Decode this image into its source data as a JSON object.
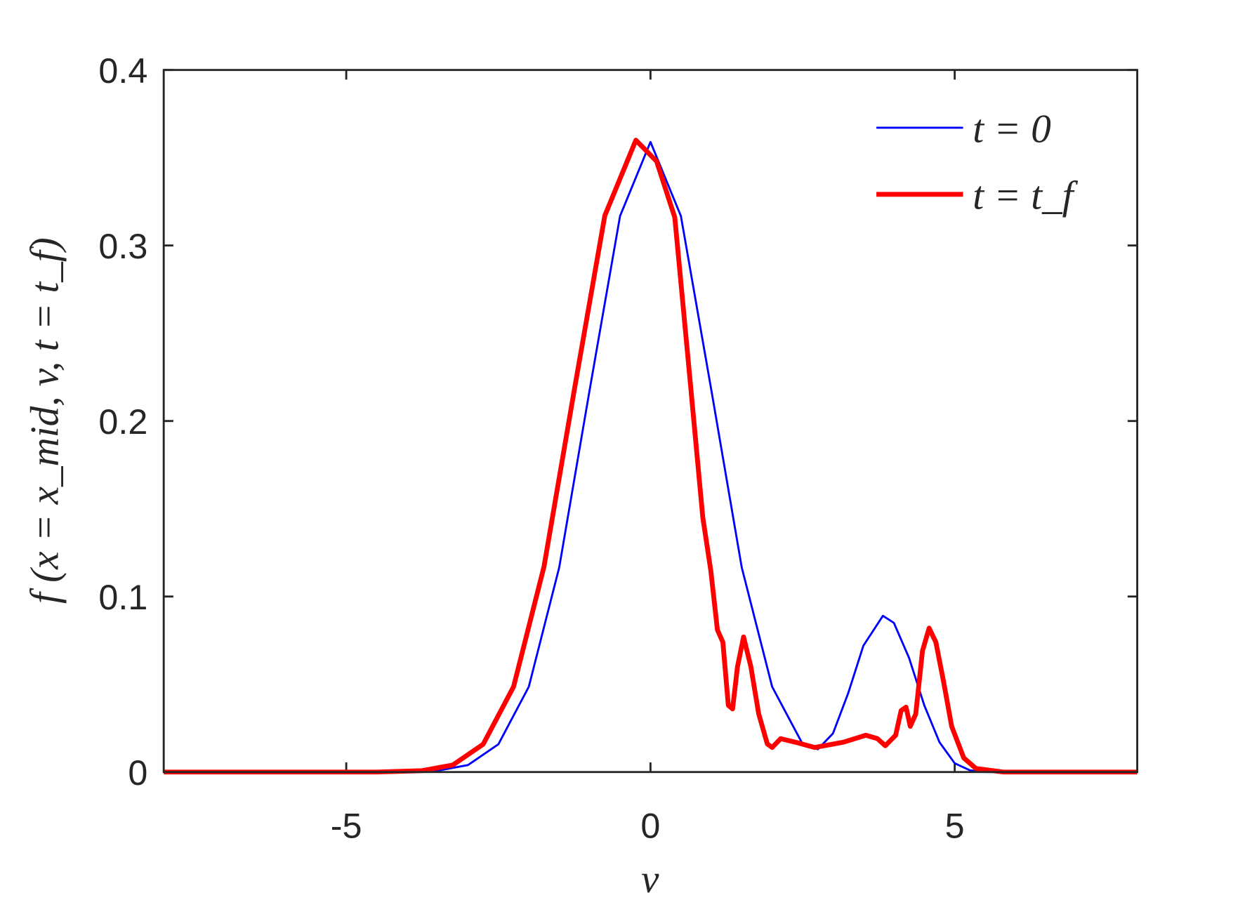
{
  "chart_data": {
    "type": "line",
    "xlabel": "v",
    "ylabel": "f (x = x_mid, v, t = t_f)",
    "xlim": [
      -8,
      8
    ],
    "ylim": [
      0,
      0.4
    ],
    "xticks": [
      -5,
      0,
      5
    ],
    "yticks": [
      0,
      0.1,
      0.2,
      0.3,
      0.4
    ],
    "legend": "upper right",
    "series": [
      {
        "name": "t = 0",
        "color": "#0000ff",
        "width": 2.5,
        "x": [
          -8,
          -6,
          -4,
          -3.5,
          -3,
          -2.5,
          -2,
          -1.5,
          -1,
          -0.5,
          0,
          0.5,
          1,
          1.5,
          2,
          2.5,
          2.75,
          3,
          3.25,
          3.5,
          3.82,
          4,
          4.25,
          4.5,
          4.75,
          5,
          5.25,
          5.5,
          8
        ],
        "values": [
          0,
          0,
          0.00012,
          0.00079,
          0.004,
          0.0158,
          0.0486,
          0.1166,
          0.2177,
          0.3168,
          0.359,
          0.3168,
          0.2177,
          0.1166,
          0.0486,
          0.016,
          0.013,
          0.022,
          0.045,
          0.072,
          0.089,
          0.085,
          0.065,
          0.038,
          0.017,
          0.005,
          0.001,
          0,
          0
        ]
      },
      {
        "name": "t = t_f",
        "color": "#ff0000",
        "width": 6,
        "x": [
          -8,
          -4.5,
          -3.75,
          -3.25,
          -2.75,
          -2.25,
          -1.75,
          -1.25,
          -0.75,
          -0.24,
          0.1,
          0.4,
          0.66,
          0.86,
          0.99,
          1.1,
          1.19,
          1.28,
          1.35,
          1.43,
          1.53,
          1.65,
          1.78,
          1.92,
          2.0,
          2.14,
          2.38,
          2.7,
          3.17,
          3.54,
          3.73,
          3.86,
          4.03,
          4.12,
          4.2,
          4.27,
          4.36,
          4.47,
          4.58,
          4.69,
          4.82,
          4.95,
          5.15,
          5.35,
          5.8,
          8
        ],
        "values": [
          0,
          0,
          0.0008,
          0.004,
          0.0158,
          0.0486,
          0.117,
          0.218,
          0.317,
          0.36,
          0.348,
          0.316,
          0.22,
          0.145,
          0.115,
          0.081,
          0.074,
          0.038,
          0.036,
          0.06,
          0.077,
          0.06,
          0.033,
          0.016,
          0.014,
          0.019,
          0.017,
          0.014,
          0.017,
          0.021,
          0.019,
          0.015,
          0.021,
          0.035,
          0.037,
          0.026,
          0.033,
          0.069,
          0.082,
          0.074,
          0.051,
          0.026,
          0.008,
          0.002,
          0,
          0
        ]
      }
    ]
  }
}
